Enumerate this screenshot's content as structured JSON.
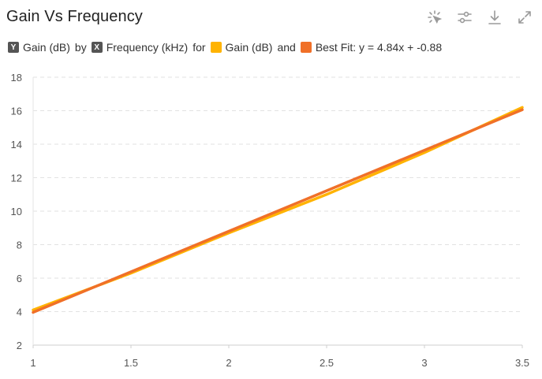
{
  "header": {
    "title": "Gain Vs Frequency"
  },
  "toolbar": {
    "icons": [
      "select-icon",
      "adjust-icon",
      "download-icon",
      "expand-icon"
    ]
  },
  "legend": {
    "y_badge": "Y",
    "y_label": "Gain (dB)",
    "by_text": "by",
    "x_badge": "X",
    "x_label": "Frequency (kHz)",
    "for_text": "for",
    "series1_label": "Gain (dB)",
    "and_text": "and",
    "series2_label": "Best Fit: y = 4.84x + -0.88"
  },
  "chart_data": {
    "type": "line",
    "title": "Gain Vs Frequency",
    "xlabel": "Frequency (kHz)",
    "ylabel": "Gain (dB)",
    "xlim": [
      1,
      3.5
    ],
    "ylim": [
      2,
      18
    ],
    "x_ticks": [
      "1",
      "1.5",
      "2",
      "2.5",
      "3",
      "3.5"
    ],
    "y_ticks": [
      "2",
      "4",
      "6",
      "8",
      "10",
      "12",
      "14",
      "16",
      "18"
    ],
    "grid": true,
    "legend_position": "top-left",
    "series": [
      {
        "name": "Gain (dB)",
        "color": "#ffb300",
        "x": [
          1,
          1.5,
          2,
          2.5,
          3,
          3.5
        ],
        "y": [
          4.1,
          6.3,
          8.7,
          11.0,
          13.5,
          16.2
        ]
      },
      {
        "name": "Best Fit: y = 4.84x + -0.88",
        "color": "#f07028",
        "x": [
          1,
          3.5
        ],
        "y": [
          3.96,
          16.06
        ]
      }
    ]
  }
}
